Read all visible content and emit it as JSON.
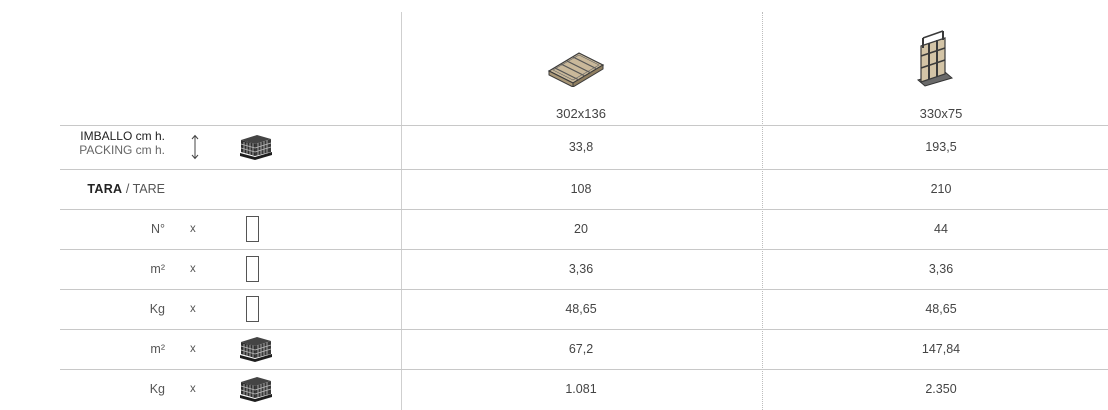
{
  "columns": [
    {
      "label": "302x136",
      "icon": "tray-pallet-icon"
    },
    {
      "label": "330x75",
      "icon": "a-frame-rack-icon"
    }
  ],
  "rows": {
    "packing": {
      "label_it": "IMBALLO cm h.",
      "label_en": "PACKING cm h.",
      "values": [
        "33,8",
        "193,5"
      ]
    },
    "tare": {
      "label_it": "TARA",
      "separator": "/",
      "label_en": "TARE",
      "values": [
        "108",
        "210"
      ]
    },
    "n_per_piece": {
      "label": "N°",
      "x": "x",
      "values": [
        "20",
        "44"
      ]
    },
    "m2_per_piece": {
      "label": "m²",
      "x": "x",
      "values": [
        "3,36",
        "3,36"
      ]
    },
    "kg_per_piece": {
      "label": "Kg",
      "x": "x",
      "values": [
        "48,65",
        "48,65"
      ]
    },
    "m2_per_crate": {
      "label": "m²",
      "x": "x",
      "values": [
        "67,2",
        "147,84"
      ]
    },
    "kg_per_crate": {
      "label": "Kg",
      "x": "x",
      "values": [
        "1.081",
        "2.350"
      ]
    }
  }
}
